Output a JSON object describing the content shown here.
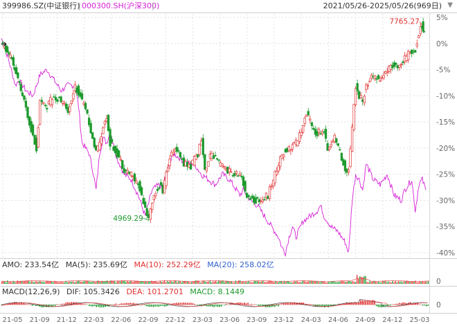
{
  "header": {
    "symbol_main": "399986.SZ(中证银行)",
    "separator": "|",
    "symbol_compare": "000300.SH(沪深300)",
    "date_range": "2021/05/26-2025/05/26(969日)",
    "range_menu_icon": "triangle-down-icon"
  },
  "colors": {
    "up": "#e03030",
    "down": "#1e9a2e",
    "compare": "#d620d6",
    "grid": "#e0e0e0",
    "axis_text": "#666666",
    "ma10": "#e03030",
    "ma20": "#3060d0"
  },
  "chart_data": {
    "type": "candlestick-with-line",
    "title": "399986.SZ(中证银行) vs 000300.SH(沪深300)",
    "y_axis_right": {
      "unit": "%",
      "ticks": [
        "5%",
        "0%",
        "-5%",
        "-10%",
        "-15%",
        "-20%",
        "-25%",
        "-30%",
        "-35%",
        "-40%"
      ],
      "range": [
        5,
        -40
      ]
    },
    "x_axis": {
      "tick_labels": [
        "21-05",
        "21-09",
        "21-12",
        "22-03",
        "22-06",
        "22-09",
        "22-12",
        "23-03",
        "23-06",
        "23-09",
        "23-12",
        "24-03",
        "24-06",
        "24-09",
        "24-12",
        "25-03"
      ]
    },
    "annotations": {
      "max_label": "7765.27",
      "max_pct": 3.5,
      "min_label": "4969.29",
      "min_pct": -33.8
    },
    "main_series_pct": [
      [
        0,
        0
      ],
      [
        3,
        -3
      ],
      [
        6,
        -10
      ],
      [
        8,
        -15
      ],
      [
        10,
        -20
      ],
      [
        11,
        -11
      ],
      [
        13,
        -12
      ],
      [
        15,
        -10
      ],
      [
        17,
        -11
      ],
      [
        19,
        -13
      ],
      [
        21,
        -8
      ],
      [
        23,
        -11
      ],
      [
        25,
        -15
      ],
      [
        27,
        -21
      ],
      [
        29,
        -16
      ],
      [
        30,
        -14
      ],
      [
        31,
        -19
      ],
      [
        33,
        -21
      ],
      [
        35,
        -24
      ],
      [
        37,
        -25
      ],
      [
        39,
        -27
      ],
      [
        41,
        -31
      ],
      [
        42,
        -33.8
      ],
      [
        43,
        -30
      ],
      [
        45,
        -27
      ],
      [
        46,
        -28
      ],
      [
        48,
        -22
      ],
      [
        50,
        -20
      ],
      [
        52,
        -23
      ],
      [
        54,
        -23.5
      ],
      [
        56,
        -21
      ],
      [
        57,
        -18
      ],
      [
        58,
        -24
      ],
      [
        60,
        -21
      ],
      [
        62,
        -23
      ],
      [
        64,
        -24
      ],
      [
        66,
        -25
      ],
      [
        68,
        -25
      ],
      [
        70,
        -29
      ],
      [
        72,
        -30
      ],
      [
        74,
        -30
      ],
      [
        76,
        -29
      ],
      [
        78,
        -25
      ],
      [
        80,
        -21
      ],
      [
        82,
        -20
      ],
      [
        84,
        -19
      ],
      [
        86,
        -16
      ],
      [
        87,
        -13
      ],
      [
        88,
        -15
      ],
      [
        89,
        -17
      ],
      [
        90,
        -17
      ],
      [
        92,
        -17
      ],
      [
        93,
        -20
      ],
      [
        95,
        -18
      ],
      [
        96,
        -20
      ],
      [
        97,
        -22
      ],
      [
        98,
        -24
      ],
      [
        99,
        -24
      ],
      [
        100,
        -16
      ],
      [
        101,
        -8
      ],
      [
        102,
        -10
      ],
      [
        103,
        -11
      ],
      [
        104,
        -8
      ],
      [
        106,
        -6
      ],
      [
        108,
        -7
      ],
      [
        110,
        -5
      ],
      [
        112,
        -4
      ],
      [
        114,
        -4
      ],
      [
        116,
        -2
      ],
      [
        118,
        -1
      ],
      [
        119,
        2
      ],
      [
        120,
        3.5
      ],
      [
        120.5,
        2
      ]
    ],
    "compare_series_pct": [
      [
        0,
        1
      ],
      [
        2,
        -3
      ],
      [
        4,
        -8
      ],
      [
        5,
        -7
      ],
      [
        7,
        -9
      ],
      [
        9,
        -10
      ],
      [
        11,
        -6
      ],
      [
        13,
        -5
      ],
      [
        15,
        -7
      ],
      [
        17,
        -9
      ],
      [
        19,
        -8
      ],
      [
        21,
        -8
      ],
      [
        22,
        -12
      ],
      [
        23,
        -19
      ],
      [
        25,
        -21
      ],
      [
        26,
        -24
      ],
      [
        27,
        -28
      ],
      [
        28,
        -21
      ],
      [
        29,
        -18
      ],
      [
        30,
        -19
      ],
      [
        31,
        -17
      ],
      [
        33,
        -22
      ],
      [
        35,
        -25
      ],
      [
        37,
        -26
      ],
      [
        39,
        -29
      ],
      [
        41,
        -33
      ],
      [
        43,
        -28
      ],
      [
        45,
        -27
      ],
      [
        46,
        -28
      ],
      [
        47,
        -25
      ],
      [
        49,
        -21
      ],
      [
        51,
        -22
      ],
      [
        53,
        -23
      ],
      [
        55,
        -23
      ],
      [
        57,
        -25
      ],
      [
        59,
        -26
      ],
      [
        61,
        -27
      ],
      [
        63,
        -25
      ],
      [
        65,
        -26
      ],
      [
        67,
        -28
      ],
      [
        68,
        -29
      ],
      [
        69,
        -28
      ],
      [
        71,
        -30
      ],
      [
        73,
        -31
      ],
      [
        75,
        -33
      ],
      [
        77,
        -35
      ],
      [
        78,
        -36
      ],
      [
        79,
        -37
      ],
      [
        80,
        -39
      ],
      [
        81,
        -40
      ],
      [
        82,
        -37
      ],
      [
        83,
        -35
      ],
      [
        84,
        -37
      ],
      [
        86,
        -34
      ],
      [
        88,
        -33
      ],
      [
        90,
        -32
      ],
      [
        91,
        -31
      ],
      [
        92,
        -33
      ],
      [
        94,
        -35
      ],
      [
        96,
        -36
      ],
      [
        98,
        -38
      ],
      [
        99,
        -40
      ],
      [
        100,
        -30
      ],
      [
        101,
        -25
      ],
      [
        102,
        -26
      ],
      [
        103,
        -28
      ],
      [
        104,
        -23
      ],
      [
        106,
        -26
      ],
      [
        108,
        -27
      ],
      [
        110,
        -25
      ],
      [
        112,
        -29
      ],
      [
        114,
        -30
      ],
      [
        115,
        -28
      ],
      [
        116,
        -27
      ],
      [
        117,
        -26
      ],
      [
        118,
        -32
      ],
      [
        119,
        -27
      ],
      [
        120,
        -26
      ],
      [
        121,
        -28
      ]
    ],
    "indicators": {
      "amo": {
        "label": "AMO: 233.54亿",
        "ma5": "MA(5): 235.69亿",
        "ma10": "MA(10): 252.29亿",
        "ma20": "MA(20): 258.02亿",
        "axis_label": "0"
      },
      "macd": {
        "label": "MACD(12,26,9)",
        "dif": "DIF: 105.3426",
        "dea": "DEA: 101.2701",
        "macd": "MACD: 8.1449",
        "axis_label": "0"
      }
    }
  }
}
